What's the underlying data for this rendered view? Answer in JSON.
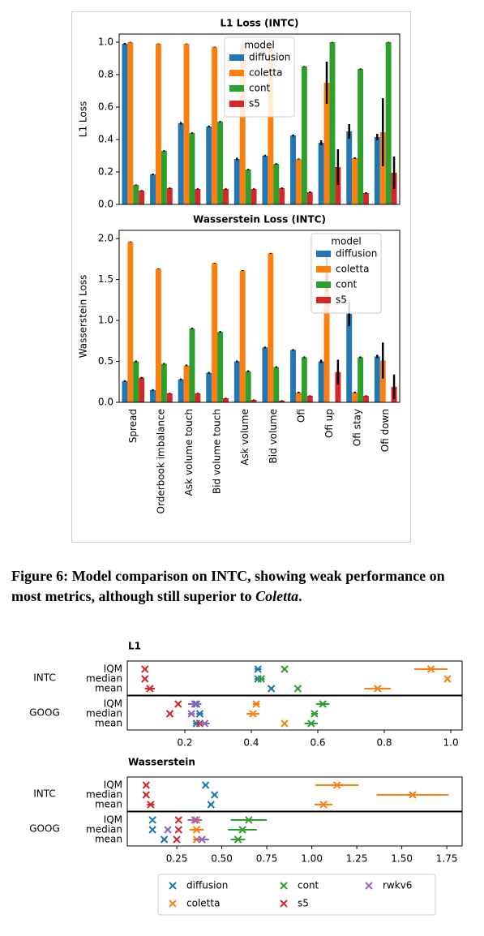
{
  "chart_data": [
    {
      "type": "bar",
      "categories": [
        "Spread",
        "Orderbook imbalance",
        "Ask volume touch",
        "Bid volume touch",
        "Ask volume",
        "Bid volume",
        "Ofi",
        "Ofi up",
        "Ofi stay",
        "Ofi down"
      ],
      "panels": [
        {
          "title": "L1 Loss (INTC)",
          "ylabel": "L1 Loss",
          "ylim": [
            0,
            1.05
          ],
          "yticks": [
            {
              "value": 0,
              "label": "0.0"
            },
            0.2,
            0.4,
            0.6,
            0.8,
            {
              "value": 1,
              "label": "1.0"
            }
          ],
          "legend": "upper center",
          "legend_title": "model",
          "series": [
            {
              "name": "diffusion",
              "color": "#1f77b4",
              "values": [
                0.99,
                0.185,
                0.5,
                0.48,
                0.28,
                0.3,
                0.425,
                0.38,
                0.45,
                0.415
              ],
              "errors": [
                0.005,
                0.005,
                0.008,
                0.006,
                0.008,
                0.006,
                0.006,
                0.015,
                0.045,
                0.02
              ]
            },
            {
              "name": "coletta",
              "color": "#ff7f0e",
              "values": [
                1.0,
                0.99,
                0.99,
                0.97,
                0.99,
                0.98,
                0.28,
                0.75,
                0.285,
                0.445
              ],
              "errors": [
                0.002,
                0.002,
                0.002,
                0.002,
                0.002,
                0.002,
                0.003,
                0.13,
                0.005,
                0.21
              ]
            },
            {
              "name": "cont",
              "color": "#2ca02c",
              "values": [
                0.12,
                0.33,
                0.44,
                0.51,
                0.215,
                0.25,
                0.85,
                1.0,
                0.835,
                1.0
              ],
              "errors": [
                0.003,
                0.004,
                0.004,
                0.004,
                0.004,
                0.004,
                0.003,
                0.002,
                0.003,
                0.002
              ]
            },
            {
              "name": "s5",
              "color": "#d62728",
              "values": [
                0.085,
                0.1,
                0.095,
                0.095,
                0.095,
                0.1,
                0.075,
                0.23,
                0.07,
                0.195
              ],
              "errors": [
                0.003,
                0.004,
                0.004,
                0.004,
                0.004,
                0.004,
                0.005,
                0.11,
                0.005,
                0.1
              ]
            }
          ]
        },
        {
          "title": "Wasserstein Loss (INTC)",
          "ylabel": "Wasserstein Loss",
          "ylim": [
            0,
            2.1
          ],
          "yticks": [
            {
              "value": 0,
              "label": "0.0"
            },
            0.5,
            {
              "value": 1,
              "label": "1.0"
            },
            1.5,
            {
              "value": 2,
              "label": "2.0"
            }
          ],
          "legend": "upper right",
          "legend_title": "model",
          "series": [
            {
              "name": "diffusion",
              "color": "#1f77b4",
              "values": [
                0.26,
                0.15,
                0.28,
                0.36,
                0.5,
                0.67,
                0.64,
                0.5,
                1.08,
                0.56
              ],
              "errors": [
                0.01,
                0.01,
                0.01,
                0.01,
                0.01,
                0.01,
                0.01,
                0.02,
                0.15,
                0.02
              ]
            },
            {
              "name": "coletta",
              "color": "#ff7f0e",
              "values": [
                1.96,
                1.63,
                0.45,
                1.7,
                1.61,
                1.82,
                0.12,
                1.58,
                0.12,
                0.51
              ],
              "errors": [
                0.005,
                0.005,
                0.01,
                0.005,
                0.005,
                0.005,
                0.01,
                0.23,
                0.01,
                0.22
              ]
            },
            {
              "name": "cont",
              "color": "#2ca02c",
              "values": [
                0.5,
                0.47,
                0.9,
                0.86,
                0.38,
                0.43,
                0.55,
                null,
                0.55,
                null
              ],
              "errors": [
                0.01,
                0.01,
                0.01,
                0.01,
                0.01,
                0.01,
                0.01,
                null,
                0.01,
                null
              ]
            },
            {
              "name": "s5",
              "color": "#d62728",
              "values": [
                0.3,
                0.11,
                0.11,
                0.05,
                0.03,
                0.02,
                0.08,
                0.37,
                0.08,
                0.19
              ],
              "errors": [
                0.01,
                0.005,
                0.005,
                0.005,
                0.005,
                0.005,
                0.005,
                0.15,
                0.005,
                0.15
              ]
            }
          ]
        }
      ]
    },
    {
      "type": "dot",
      "series": [
        {
          "name": "diffusion",
          "color": "#1f77b4"
        },
        {
          "name": "coletta",
          "color": "#ff7f0e"
        },
        {
          "name": "cont",
          "color": "#2ca02c"
        },
        {
          "name": "s5",
          "color": "#d62728"
        },
        {
          "name": "rwkv6",
          "color": "#9467bd"
        }
      ],
      "sections": [
        {
          "title": "L1",
          "xlim": [
            0.027,
            1.034
          ],
          "xticks": [
            0.2,
            0.4,
            0.6,
            0.8,
            {
              "value": 1,
              "label": "1.0"
            }
          ],
          "groups": [
            {
              "label": "INTC",
              "categories": [
                "IQM",
                "median",
                "mean"
              ],
              "data": [
                {
                  "values": [
                    0.42,
                    0.42,
                    0.46
                  ],
                  "errors": [
                    0.01,
                    0.01,
                    0.005
                  ]
                },
                {
                  "values": [
                    0.94,
                    0.99,
                    0.78
                  ],
                  "errors": [
                    0.05,
                    0.005,
                    0.04
                  ]
                },
                {
                  "values": [
                    0.5,
                    0.43,
                    0.54
                  ],
                  "errors": [
                    0.005,
                    0.01,
                    0.005
                  ]
                },
                {
                  "values": [
                    0.08,
                    0.08,
                    0.095
                  ],
                  "errors": [
                    0.005,
                    0.005,
                    0.015
                  ]
                },
                null
              ]
            },
            {
              "label": "GOOG",
              "categories": [
                "IQM",
                "median",
                "mean"
              ],
              "data": [
                {
                  "values": [
                    0.235,
                    0.245,
                    0.235
                  ],
                  "errors": [
                    0.01,
                    0.01,
                    0.01
                  ]
                },
                {
                  "values": [
                    0.415,
                    0.405,
                    0.5
                  ],
                  "errors": [
                    0.01,
                    0.02,
                    0.005
                  ]
                },
                {
                  "values": [
                    0.615,
                    0.59,
                    0.58
                  ],
                  "errors": [
                    0.02,
                    0.01,
                    0.02
                  ]
                },
                {
                  "values": [
                    0.18,
                    0.155,
                    0.245
                  ],
                  "errors": [
                    0.005,
                    0.005,
                    0.005
                  ]
                },
                {
                  "values": [
                    0.23,
                    0.22,
                    0.26
                  ],
                  "errors": [
                    0.02,
                    0.01,
                    0.015
                  ]
                }
              ]
            }
          ]
        },
        {
          "title": "Wasserstein",
          "xlim": [
            -0.025,
            1.835
          ],
          "xticks": [
            0.25,
            {
              "value": 0.5,
              "label": "0.50"
            },
            0.75,
            {
              "value": 1,
              "label": "1.00"
            },
            1.25,
            {
              "value": 1.5,
              "label": "1.50"
            },
            1.75
          ],
          "groups": [
            {
              "label": "INTC",
              "categories": [
                "IQM",
                "median",
                "mean"
              ],
              "data": [
                {
                  "values": [
                    0.41,
                    0.46,
                    0.44
                  ],
                  "errors": [
                    0.01,
                    0.01,
                    0.01
                  ]
                },
                {
                  "values": [
                    1.14,
                    1.56,
                    1.065
                  ],
                  "errors": [
                    0.12,
                    0.2,
                    0.05
                  ]
                },
                null,
                {
                  "values": [
                    0.08,
                    0.08,
                    0.105
                  ],
                  "errors": [
                    0.01,
                    0.01,
                    0.02
                  ]
                },
                null
              ]
            },
            {
              "label": "GOOG",
              "categories": [
                "IQM",
                "median",
                "mean"
              ],
              "data": [
                {
                  "values": [
                    0.115,
                    0.115,
                    0.18
                  ],
                  "errors": [
                    0.005,
                    0.005,
                    0.01
                  ]
                },
                {
                  "values": [
                    0.36,
                    0.36,
                    0.36
                  ],
                  "errors": [
                    0.02,
                    0.04,
                    0.02
                  ]
                },
                {
                  "values": [
                    0.65,
                    0.615,
                    0.59
                  ],
                  "errors": [
                    0.1,
                    0.08,
                    0.04
                  ]
                },
                {
                  "values": [
                    0.26,
                    0.26,
                    0.25
                  ],
                  "errors": [
                    0.005,
                    0.005,
                    0.005
                  ]
                },
                {
                  "values": [
                    0.35,
                    0.2,
                    0.39
                  ],
                  "errors": [
                    0.04,
                    0.01,
                    0.04
                  ]
                }
              ]
            }
          ]
        }
      ]
    }
  ],
  "caption": {
    "label": "Figure 6:",
    "text": "Model comparison on INTC, showing weak performance on most metrics, although still superior to",
    "emphasis": "Coletta",
    "end": "."
  }
}
